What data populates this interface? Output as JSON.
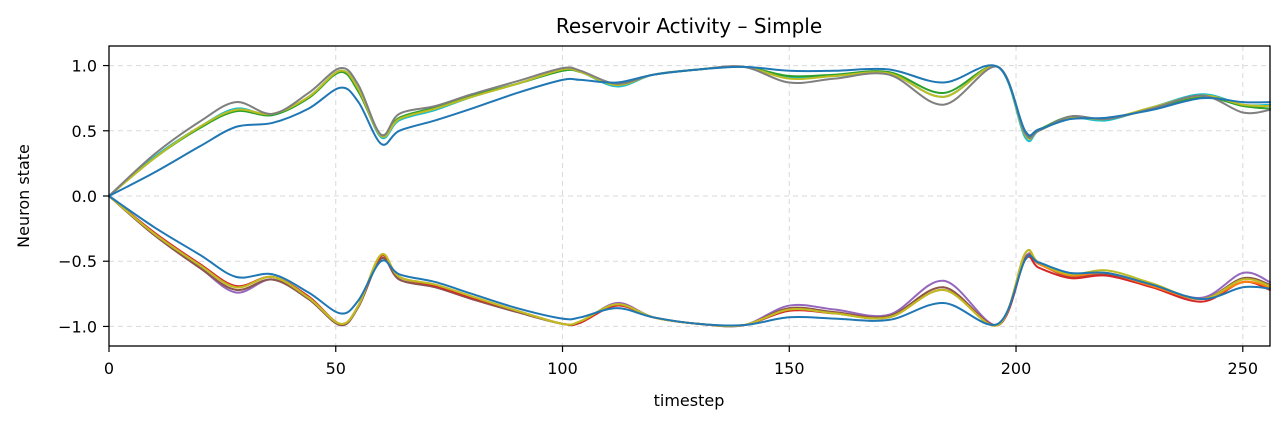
{
  "chart_data": {
    "type": "line",
    "title": "Reservoir Activity – Simple",
    "xlabel": "timestep",
    "ylabel": "Neuron state",
    "xlim": [
      0,
      256
    ],
    "ylim": [
      -1.15,
      1.15
    ],
    "xticks": [
      0,
      50,
      100,
      150,
      200,
      250
    ],
    "yticks": [
      -1.0,
      -0.5,
      0.0,
      0.5,
      1.0
    ],
    "ytick_labels": [
      "−1.0",
      "−0.5",
      "0.0",
      "0.5",
      "1.0"
    ],
    "grid": true,
    "series": [
      {
        "color": "#17becf",
        "x": [
          0,
          10,
          20,
          28,
          36,
          44,
          51,
          55,
          60,
          64,
          72,
          80,
          90,
          100,
          104,
          112,
          120,
          130,
          140,
          150,
          160,
          172,
          184,
          196,
          202,
          205,
          212,
          220,
          230,
          241,
          250,
          256
        ],
        "y": [
          0.0,
          0.3,
          0.53,
          0.67,
          0.62,
          0.76,
          0.96,
          0.82,
          0.45,
          0.58,
          0.66,
          0.76,
          0.86,
          0.96,
          0.95,
          0.84,
          0.93,
          0.97,
          0.99,
          0.91,
          0.92,
          0.94,
          0.76,
          0.99,
          0.45,
          0.5,
          0.6,
          0.58,
          0.68,
          0.78,
          0.7,
          0.7
        ]
      },
      {
        "color": "#2ca02c",
        "x": [
          0,
          10,
          20,
          28,
          36,
          44,
          51,
          55,
          60,
          64,
          72,
          80,
          90,
          100,
          104,
          112,
          120,
          130,
          140,
          150,
          160,
          172,
          184,
          196,
          202,
          205,
          212,
          220,
          230,
          241,
          250,
          256
        ],
        "y": [
          0.0,
          0.29,
          0.52,
          0.65,
          0.62,
          0.75,
          0.95,
          0.8,
          0.47,
          0.6,
          0.68,
          0.77,
          0.86,
          0.96,
          0.95,
          0.86,
          0.93,
          0.97,
          0.99,
          0.92,
          0.93,
          0.95,
          0.79,
          0.99,
          0.49,
          0.51,
          0.61,
          0.59,
          0.67,
          0.76,
          0.69,
          0.67
        ]
      },
      {
        "color": "#bcbd22",
        "x": [
          0,
          10,
          20,
          28,
          36,
          44,
          51,
          55,
          60,
          64,
          72,
          80,
          90,
          100,
          104,
          112,
          120,
          130,
          140,
          150,
          160,
          172,
          184,
          196,
          202,
          205,
          212,
          220,
          230,
          241,
          250,
          256
        ],
        "y": [
          0.0,
          0.29,
          0.53,
          0.66,
          0.63,
          0.76,
          0.96,
          0.82,
          0.46,
          0.59,
          0.67,
          0.76,
          0.86,
          0.97,
          0.95,
          0.85,
          0.93,
          0.97,
          0.99,
          0.9,
          0.92,
          0.94,
          0.76,
          0.99,
          0.47,
          0.5,
          0.6,
          0.59,
          0.68,
          0.77,
          0.7,
          0.69
        ]
      },
      {
        "color": "#7f7f7f",
        "x": [
          0,
          10,
          20,
          28,
          36,
          44,
          51,
          55,
          60,
          64,
          72,
          80,
          90,
          100,
          104,
          112,
          120,
          130,
          140,
          150,
          160,
          172,
          184,
          196,
          202,
          205,
          212,
          220,
          230,
          241,
          250,
          256
        ],
        "y": [
          0.0,
          0.32,
          0.57,
          0.72,
          0.63,
          0.79,
          0.98,
          0.85,
          0.47,
          0.63,
          0.69,
          0.78,
          0.88,
          0.98,
          0.96,
          0.86,
          0.93,
          0.97,
          0.99,
          0.87,
          0.9,
          0.93,
          0.7,
          0.99,
          0.48,
          0.5,
          0.61,
          0.59,
          0.67,
          0.77,
          0.64,
          0.66
        ]
      },
      {
        "color": "#1f77b4",
        "x": [
          0,
          10,
          20,
          28,
          36,
          44,
          51,
          55,
          60,
          64,
          72,
          80,
          90,
          100,
          104,
          112,
          120,
          130,
          140,
          150,
          160,
          172,
          184,
          196,
          202,
          205,
          212,
          220,
          230,
          241,
          250,
          256
        ],
        "y": [
          0.0,
          0.18,
          0.38,
          0.53,
          0.56,
          0.67,
          0.83,
          0.72,
          0.4,
          0.5,
          0.58,
          0.67,
          0.79,
          0.89,
          0.89,
          0.87,
          0.93,
          0.97,
          0.99,
          0.96,
          0.96,
          0.97,
          0.87,
          0.99,
          0.5,
          0.51,
          0.59,
          0.6,
          0.66,
          0.75,
          0.72,
          0.72
        ]
      },
      {
        "color": "#9467bd",
        "x": [
          0,
          10,
          20,
          28,
          36,
          44,
          51,
          55,
          60,
          64,
          72,
          80,
          90,
          100,
          104,
          112,
          120,
          130,
          140,
          150,
          160,
          172,
          184,
          196,
          202,
          205,
          212,
          220,
          230,
          241,
          250,
          256
        ],
        "y": [
          0.0,
          -0.3,
          -0.55,
          -0.74,
          -0.64,
          -0.79,
          -0.99,
          -0.85,
          -0.48,
          -0.64,
          -0.7,
          -0.79,
          -0.89,
          -0.98,
          -0.97,
          -0.82,
          -0.93,
          -0.98,
          -0.99,
          -0.84,
          -0.87,
          -0.91,
          -0.65,
          -0.99,
          -0.47,
          -0.51,
          -0.61,
          -0.59,
          -0.68,
          -0.78,
          -0.59,
          -0.66
        ]
      },
      {
        "color": "#8c564b",
        "x": [
          0,
          10,
          20,
          28,
          36,
          44,
          51,
          55,
          60,
          64,
          72,
          80,
          90,
          100,
          104,
          112,
          120,
          130,
          140,
          150,
          160,
          172,
          184,
          196,
          202,
          205,
          212,
          220,
          230,
          241,
          250,
          256
        ],
        "y": [
          0.0,
          -0.3,
          -0.55,
          -0.72,
          -0.64,
          -0.79,
          -0.99,
          -0.85,
          -0.48,
          -0.64,
          -0.7,
          -0.79,
          -0.89,
          -0.98,
          -0.97,
          -0.83,
          -0.93,
          -0.98,
          -0.99,
          -0.86,
          -0.89,
          -0.92,
          -0.7,
          -0.99,
          -0.48,
          -0.52,
          -0.62,
          -0.6,
          -0.69,
          -0.79,
          -0.63,
          -0.68
        ]
      },
      {
        "color": "#d62728",
        "x": [
          0,
          10,
          20,
          28,
          36,
          44,
          51,
          55,
          60,
          64,
          72,
          80,
          90,
          100,
          104,
          112,
          120,
          130,
          140,
          150,
          160,
          172,
          184,
          196,
          202,
          205,
          212,
          220,
          230,
          241,
          250,
          256
        ],
        "y": [
          0.0,
          -0.28,
          -0.52,
          -0.69,
          -0.62,
          -0.77,
          -0.98,
          -0.84,
          -0.46,
          -0.62,
          -0.69,
          -0.78,
          -0.88,
          -0.98,
          -0.97,
          -0.84,
          -0.93,
          -0.98,
          -0.99,
          -0.88,
          -0.9,
          -0.93,
          -0.72,
          -0.99,
          -0.49,
          -0.55,
          -0.63,
          -0.61,
          -0.7,
          -0.81,
          -0.66,
          -0.72
        ]
      },
      {
        "color": "#ff7f0e",
        "x": [
          0,
          10,
          20,
          28,
          36,
          44,
          51,
          55,
          60,
          64,
          72,
          80,
          90,
          100,
          104,
          112,
          120,
          130,
          140,
          150,
          160,
          172,
          184,
          196,
          202,
          205,
          212,
          220,
          230,
          241,
          250,
          256
        ],
        "y": [
          0.0,
          -0.29,
          -0.53,
          -0.7,
          -0.62,
          -0.78,
          -0.98,
          -0.84,
          -0.45,
          -0.62,
          -0.68,
          -0.77,
          -0.88,
          -0.98,
          -0.96,
          -0.83,
          -0.93,
          -0.98,
          -0.99,
          -0.87,
          -0.9,
          -0.93,
          -0.72,
          -0.99,
          -0.44,
          -0.52,
          -0.61,
          -0.59,
          -0.69,
          -0.79,
          -0.66,
          -0.7
        ]
      },
      {
        "color": "#bcbd22",
        "x": [
          0,
          10,
          20,
          28,
          36,
          44,
          51,
          55,
          60,
          64,
          72,
          80,
          90,
          100,
          104,
          112,
          120,
          130,
          140,
          150,
          160,
          172,
          184,
          196,
          202,
          205,
          212,
          220,
          230,
          241,
          250,
          256
        ],
        "y": [
          0.0,
          -0.29,
          -0.53,
          -0.7,
          -0.62,
          -0.78,
          -0.98,
          -0.84,
          -0.45,
          -0.62,
          -0.68,
          -0.77,
          -0.88,
          -0.98,
          -0.96,
          -0.83,
          -0.93,
          -0.98,
          -0.99,
          -0.87,
          -0.9,
          -0.93,
          -0.72,
          -0.99,
          -0.44,
          -0.51,
          -0.6,
          -0.57,
          -0.67,
          -0.79,
          -0.64,
          -0.69
        ]
      },
      {
        "color": "#1f77b4",
        "x": [
          0,
          10,
          20,
          28,
          36,
          44,
          51,
          55,
          60,
          64,
          72,
          80,
          90,
          100,
          104,
          112,
          120,
          130,
          140,
          150,
          160,
          172,
          184,
          196,
          202,
          205,
          212,
          220,
          230,
          241,
          250,
          256
        ],
        "y": [
          0.0,
          -0.24,
          -0.45,
          -0.62,
          -0.6,
          -0.74,
          -0.9,
          -0.8,
          -0.5,
          -0.6,
          -0.66,
          -0.75,
          -0.86,
          -0.94,
          -0.93,
          -0.86,
          -0.93,
          -0.98,
          -0.99,
          -0.93,
          -0.94,
          -0.95,
          -0.82,
          -0.98,
          -0.49,
          -0.51,
          -0.59,
          -0.59,
          -0.68,
          -0.79,
          -0.7,
          -0.71
        ]
      }
    ]
  }
}
